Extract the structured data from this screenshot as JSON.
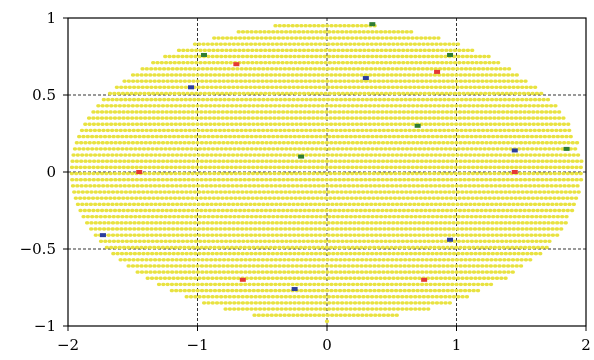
{
  "chart_data": {
    "type": "scatter",
    "title": "",
    "xlabel": "",
    "ylabel": "",
    "xlim": [
      -2,
      2
    ],
    "ylim": [
      -1,
      1
    ],
    "grid": true,
    "x_ticks": [
      -2,
      -1,
      0,
      1,
      2
    ],
    "y_ticks": [
      -1,
      -0.5,
      0,
      0.5,
      1
    ],
    "x_tick_labels": [
      "−2",
      "−1",
      "0",
      "1",
      "2"
    ],
    "y_tick_labels": [
      "−1",
      "−0.5",
      "0",
      "0.5",
      "1"
    ],
    "background_points": {
      "shape": "ellipse",
      "center": [
        0,
        0
      ],
      "semi_axes": [
        1.97,
        0.97
      ],
      "x_step": 0.0333,
      "y_step": 0.04,
      "color": "#e8e240"
    },
    "series": [
      {
        "color": "#e53935",
        "x": [
          -0.7,
          0.85,
          -1.45,
          1.45,
          -0.65,
          0.75
        ],
        "y": [
          0.7,
          0.65,
          0.0,
          0.0,
          -0.7,
          -0.7
        ]
      },
      {
        "color": "#2c3e9e",
        "x": [
          -1.05,
          0.3,
          1.45,
          -1.73,
          0.95,
          -0.25
        ],
        "y": [
          0.55,
          0.61,
          0.14,
          -0.41,
          -0.44,
          -0.76
        ]
      },
      {
        "color": "#2e7d32",
        "x": [
          0.35,
          -0.95,
          0.95,
          0.7,
          -0.2,
          1.85
        ],
        "y": [
          0.96,
          0.76,
          0.76,
          0.3,
          0.1,
          0.15
        ]
      }
    ]
  }
}
